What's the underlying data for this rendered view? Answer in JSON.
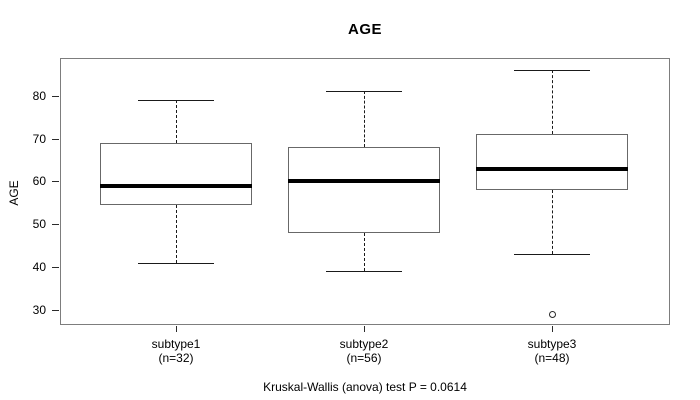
{
  "title": "AGE",
  "caption": "Kruskal-Wallis (anova) test P = 0.0614",
  "chart_data": {
    "type": "boxplot",
    "title": "AGE",
    "xlabel": "",
    "ylabel": "AGE",
    "ylim": [
      26.5,
      88.8
    ],
    "yticks": [
      30,
      40,
      50,
      60,
      70,
      80
    ],
    "grid": false,
    "legend": null,
    "categories": [
      "subtype1",
      "subtype2",
      "subtype3"
    ],
    "groups": [
      {
        "label": "subtype1",
        "count_label": "(n=32)",
        "n": 32,
        "whisker_low": 41,
        "q1": 54.5,
        "median": 59,
        "q3": 69,
        "whisker_high": 79,
        "outliers": []
      },
      {
        "label": "subtype2",
        "count_label": "(n=56)",
        "n": 56,
        "whisker_low": 39,
        "q1": 48,
        "median": 60,
        "q3": 68,
        "whisker_high": 81,
        "outliers": []
      },
      {
        "label": "subtype3",
        "count_label": "(n=48)",
        "n": 48,
        "whisker_low": 43,
        "q1": 58,
        "median": 63,
        "q3": 71,
        "whisker_high": 86,
        "outliers": [
          29
        ]
      }
    ],
    "annotation": "Kruskal-Wallis (anova) test P = 0.0614"
  }
}
